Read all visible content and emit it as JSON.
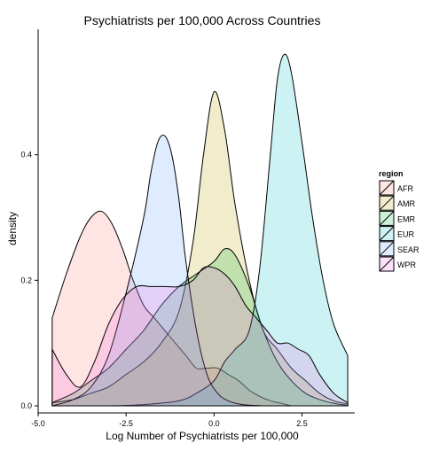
{
  "chart_data": {
    "type": "area",
    "subtype": "density",
    "title": "Psychiatrists per 100,000 Across Countries",
    "xlabel": "Log Number of Psychiatrists per 100,000",
    "ylabel": "density",
    "xlim": [
      -5.0,
      4.0
    ],
    "ylim": [
      0,
      0.6
    ],
    "x_ticks": [
      -5.0,
      -2.5,
      0.0,
      2.5
    ],
    "x_tick_labels": [
      "-5.0",
      "-2.5",
      "0.0",
      "2.5"
    ],
    "y_ticks": [
      0.0,
      0.2,
      0.4
    ],
    "y_tick_labels": [
      "0.0",
      "0.2",
      "0.4"
    ],
    "grid": false,
    "legend": {
      "title": "region",
      "position": "right"
    },
    "series": [
      {
        "name": "AFR",
        "color": "#F8766D",
        "x": [
          -4.6,
          -4.2,
          -3.8,
          -3.5,
          -3.2,
          -2.9,
          -2.6,
          -2.3,
          -2.0,
          -1.7,
          -1.4,
          -1.1,
          -0.8,
          -0.5,
          -0.2,
          0.1,
          0.4,
          0.7,
          1.0,
          1.3,
          1.6,
          1.9,
          2.2
        ],
        "y": [
          0.14,
          0.21,
          0.27,
          0.3,
          0.31,
          0.29,
          0.25,
          0.2,
          0.16,
          0.14,
          0.12,
          0.1,
          0.08,
          0.06,
          0.06,
          0.06,
          0.05,
          0.04,
          0.025,
          0.015,
          0.008,
          0.004,
          0.0
        ]
      },
      {
        "name": "AMR",
        "color": "#B79F00",
        "x": [
          -4.6,
          -4.0,
          -3.5,
          -3.0,
          -2.5,
          -2.0,
          -1.5,
          -1.0,
          -0.6,
          -0.3,
          0.0,
          0.3,
          0.6,
          1.0,
          1.4,
          1.8,
          2.2,
          2.6,
          3.0,
          3.4,
          3.8
        ],
        "y": [
          0.005,
          0.01,
          0.02,
          0.03,
          0.05,
          0.07,
          0.1,
          0.15,
          0.26,
          0.4,
          0.5,
          0.44,
          0.32,
          0.2,
          0.12,
          0.09,
          0.06,
          0.04,
          0.02,
          0.008,
          0.003
        ]
      },
      {
        "name": "EMR",
        "color": "#00BA38",
        "x": [
          -4.6,
          -4.0,
          -3.5,
          -3.0,
          -2.5,
          -2.0,
          -1.5,
          -1.0,
          -0.5,
          0.0,
          0.3,
          0.6,
          1.0,
          1.4,
          1.8,
          2.2,
          2.6,
          3.0,
          3.4,
          3.8
        ],
        "y": [
          0.005,
          0.02,
          0.04,
          0.06,
          0.09,
          0.12,
          0.16,
          0.19,
          0.21,
          0.23,
          0.25,
          0.24,
          0.19,
          0.12,
          0.07,
          0.04,
          0.02,
          0.01,
          0.004,
          0.001
        ]
      },
      {
        "name": "EUR",
        "color": "#00BFC4",
        "x": [
          -4.6,
          -4.0,
          -3.0,
          -2.0,
          -1.0,
          -0.5,
          0.0,
          0.3,
          0.6,
          1.0,
          1.3,
          1.6,
          1.8,
          2.0,
          2.2,
          2.5,
          2.8,
          3.1,
          3.4,
          3.8
        ],
        "y": [
          0.0,
          0.0,
          0.0,
          0.002,
          0.008,
          0.02,
          0.04,
          0.07,
          0.09,
          0.12,
          0.22,
          0.4,
          0.52,
          0.56,
          0.53,
          0.42,
          0.3,
          0.2,
          0.13,
          0.08
        ]
      },
      {
        "name": "SEAR",
        "color": "#619CFF",
        "x": [
          -4.6,
          -4.0,
          -3.5,
          -3.0,
          -2.5,
          -2.0,
          -1.8,
          -1.6,
          -1.4,
          -1.2,
          -1.0,
          -0.8,
          -0.5,
          -0.2,
          0.1,
          0.4,
          0.7,
          1.0,
          1.4
        ],
        "y": [
          0.0,
          0.01,
          0.03,
          0.08,
          0.18,
          0.3,
          0.37,
          0.42,
          0.43,
          0.4,
          0.33,
          0.23,
          0.12,
          0.05,
          0.02,
          0.008,
          0.003,
          0.001,
          0.0
        ]
      },
      {
        "name": "WPR",
        "color": "#F564E3",
        "x": [
          -4.6,
          -4.2,
          -3.8,
          -3.4,
          -3.0,
          -2.6,
          -2.2,
          -1.8,
          -1.4,
          -1.0,
          -0.6,
          -0.3,
          0.0,
          0.3,
          0.6,
          0.9,
          1.2,
          1.5,
          1.8,
          2.1,
          2.4,
          2.7,
          3.0,
          3.4,
          3.8
        ],
        "y": [
          0.09,
          0.05,
          0.03,
          0.07,
          0.13,
          0.17,
          0.19,
          0.19,
          0.19,
          0.19,
          0.2,
          0.22,
          0.22,
          0.21,
          0.19,
          0.16,
          0.14,
          0.12,
          0.1,
          0.1,
          0.09,
          0.08,
          0.05,
          0.02,
          0.005
        ]
      }
    ]
  }
}
